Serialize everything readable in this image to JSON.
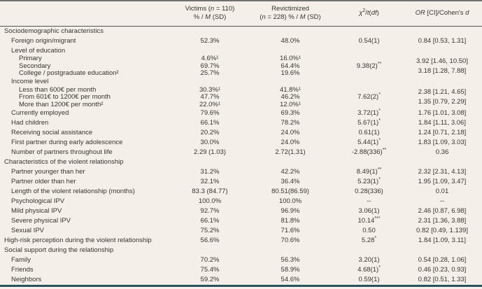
{
  "table": {
    "header": {
      "victims": {
        "a": "Victims (",
        "n": "n",
        "b": " = 110)",
        "c": "% / ",
        "m": "M",
        "d": " (SD)"
      },
      "revictimized": {
        "a": "Revictimized",
        "b": "(",
        "n": "n",
        "c": " = 228) % / ",
        "m": "M",
        "d": " (SD)"
      },
      "chi": {
        "a": "χ",
        "sup": "2",
        "b": "/",
        "t": "t",
        "c": "(",
        "df": "df",
        "d": ")"
      },
      "or": {
        "or": "OR",
        "a": " [CI]/Cohen's ",
        "d": "d"
      }
    },
    "groups": {
      "education": {
        "chi": "9.38(2)",
        "chi_sup": "**",
        "or1": "3.92 [1.46, 10.50]",
        "or2": "3.18 [1.28, 7.88]"
      },
      "income": {
        "chi": "7.62(2)",
        "chi_sup": "*",
        "or1": "2.38 [1.21, 4.65]",
        "or2": "1.35 [0.79, 2.29]"
      }
    },
    "rows": [
      {
        "label": "Sociodemographic characteristics"
      },
      {
        "label": "Foreign origin/migrant",
        "victims": "52.3%",
        "revict": "48.0%",
        "chi": "0.54(1)",
        "chi_sup": "",
        "or": "0.84 [0.53, 1.31]"
      },
      {
        "label": "Level of education"
      },
      {
        "label": "Primary",
        "victims": "4.6%¹",
        "revict": "16.0%¹"
      },
      {
        "label": "Secondary",
        "victims": "69.7%",
        "revict": "64.4%"
      },
      {
        "label": "College / postgraduate education²",
        "victims": "25.7%",
        "revict": "19.6%"
      },
      {
        "label": "Income level"
      },
      {
        "label": "Less than 600€ per month",
        "victims": "30.3%¹",
        "revict": "41.8%¹"
      },
      {
        "label": "From 601€ to 1200€ per month",
        "victims": "47.7%",
        "revict": "46.2%"
      },
      {
        "label": "More than 1200€ per month²",
        "victims": "22.0%¹",
        "revict": "12.0%¹"
      },
      {
        "label": "Currently employed",
        "victims": "79.6%",
        "revict": "69.3%",
        "chi": "3.72(1)",
        "chi_sup": "*",
        "or": "1.76 [1.01, 3.08]"
      },
      {
        "label": "Had children",
        "victims": "66.1%",
        "revict": "78.2%",
        "chi": "5.67(1)",
        "chi_sup": "*",
        "or": "1.84 [1.11, 3.06]"
      },
      {
        "label": "Receiving social assistance",
        "victims": "20.2%",
        "revict": "24.0%",
        "chi": "0.61(1)",
        "chi_sup": "",
        "or": "1.24 [0.71, 2.18]"
      },
      {
        "label": "First partner during early adolescence",
        "victims": "30.0%",
        "revict": "24.0%",
        "chi": "5.44(1)",
        "chi_sup": "*",
        "or": "1.83 [1.09, 3.03]"
      },
      {
        "label": "Number of partners throughout life",
        "victims": "2.29 (1.03)",
        "revict": "2.72(1.31)",
        "chi": "-2.88(336)",
        "chi_sup": "**",
        "or": "0.36"
      },
      {
        "label": "Characteristics of the violent relationship"
      },
      {
        "label": "Partner younger than her",
        "victims": "31.2%",
        "revict": "42.2%",
        "chi": "8.49(1)",
        "chi_sup": "**",
        "or": "2.32 [2.31, 4.13]"
      },
      {
        "label": "Partner older than her",
        "victims": "32.1%",
        "revict": "36.4%",
        "chi": "5.23(1)",
        "chi_sup": "*",
        "or": "1.95 [1.09, 3.47]"
      },
      {
        "label": "Length of the violent relationship (months)",
        "victims": "83.3 (84.77)",
        "revict": "80.51(86.59)",
        "chi": "0.28(336)",
        "chi_sup": "",
        "or": "0.01"
      },
      {
        "label": "Psychological IPV",
        "victims": "100.0%",
        "revict": "100.0%",
        "chi": "--",
        "chi_sup": "",
        "or": "--"
      },
      {
        "label": "Mild physical IPV",
        "victims": "92.7%",
        "revict": "96.9%",
        "chi": "3.06(1)",
        "chi_sup": "",
        "or": "2.46 [0.87, 6.98]"
      },
      {
        "label": "Severe physical IPV",
        "victims": "66.1%",
        "revict": "81.8%",
        "chi": "10.14",
        "chi_sup": "***",
        "or": "2.31 [1.36, 3.88]"
      },
      {
        "label": "Sexual IPV",
        "victims": "75.2%",
        "revict": "71.6%",
        "chi": "0.50",
        "chi_sup": "",
        "or": "0.82 [0.49, 1.139]"
      },
      {
        "label": "High-risk perception during the violent relationship",
        "victims": "56.6%",
        "revict": "70.6%",
        "chi": "5.28",
        "chi_sup": "*",
        "or": "1.84 [1.09, 3.11]"
      },
      {
        "label": "Social support during the relationship"
      },
      {
        "label": "Family",
        "victims": "70.2%",
        "revict": "56.3%",
        "chi": "3.20(1)",
        "chi_sup": "",
        "or": "0.54 [0.28, 1.06]"
      },
      {
        "label": "Friends",
        "victims": "75.4%",
        "revict": "58.9%",
        "chi": "4.68(1)",
        "chi_sup": "*",
        "or": "0.46 [0.23, 0.93]"
      },
      {
        "label": "Neighbors",
        "victims": "59.2%",
        "revict": "54.6%",
        "chi": "0.59(1)",
        "chi_sup": "",
        "or": "0.82 [0.51, 1.33]"
      }
    ]
  }
}
